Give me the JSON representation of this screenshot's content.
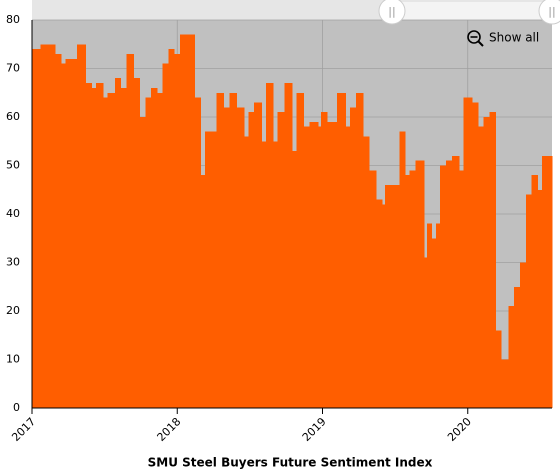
{
  "chart_data": {
    "type": "step-area",
    "title": "SMU Steel Buyers Future Sentiment Index",
    "zoom_button": "Show all",
    "color": "#ff5e00",
    "background": "#c0c0c0",
    "grid": true,
    "xlim": [
      2017,
      2020.58
    ],
    "xticks": [
      2017,
      2018,
      2019,
      2020
    ],
    "ylim": [
      0,
      80
    ],
    "yticks": [
      0,
      10,
      20,
      30,
      40,
      50,
      60,
      70,
      80
    ],
    "x": [
      2017.0,
      2017.06,
      2017.16,
      2017.2,
      2017.23,
      2017.31,
      2017.37,
      2017.41,
      2017.44,
      2017.49,
      2017.52,
      2017.57,
      2017.61,
      2017.65,
      2017.7,
      2017.74,
      2017.78,
      2017.82,
      2017.86,
      2017.9,
      2017.94,
      2017.98,
      2018.02,
      2018.12,
      2018.16,
      2018.19,
      2018.27,
      2018.32,
      2018.36,
      2018.41,
      2018.46,
      2018.49,
      2018.53,
      2018.58,
      2018.61,
      2018.66,
      2018.69,
      2018.74,
      2018.79,
      2018.82,
      2018.87,
      2018.91,
      2018.97,
      2018.99,
      2019.03,
      2019.1,
      2019.16,
      2019.19,
      2019.23,
      2019.28,
      2019.32,
      2019.37,
      2019.41,
      2019.43,
      2019.53,
      2019.57,
      2019.6,
      2019.64,
      2019.7,
      2019.72,
      2019.75,
      2019.78,
      2019.81,
      2019.85,
      2019.89,
      2019.94,
      2019.97,
      2020.03,
      2020.07,
      2020.11,
      2020.15,
      2020.19,
      2020.23,
      2020.28,
      2020.32,
      2020.36,
      2020.4,
      2020.44,
      2020.48,
      2020.51
    ],
    "values": [
      74,
      75,
      73,
      71,
      72,
      75,
      67,
      66,
      67,
      64,
      65,
      68,
      66,
      73,
      68,
      60,
      64,
      66,
      65,
      71,
      74,
      73,
      77,
      64,
      48,
      57,
      65,
      62,
      65,
      62,
      56,
      61,
      63,
      55,
      67,
      55,
      61,
      67,
      53,
      65,
      58,
      59,
      58,
      61,
      59,
      65,
      58,
      62,
      65,
      56,
      49,
      43,
      42,
      46,
      57,
      48,
      49,
      51,
      31,
      38,
      35,
      38,
      50,
      51,
      52,
      49,
      64,
      63,
      58,
      60,
      61,
      16,
      10,
      21,
      25,
      30,
      44,
      48,
      45,
      52
    ]
  }
}
